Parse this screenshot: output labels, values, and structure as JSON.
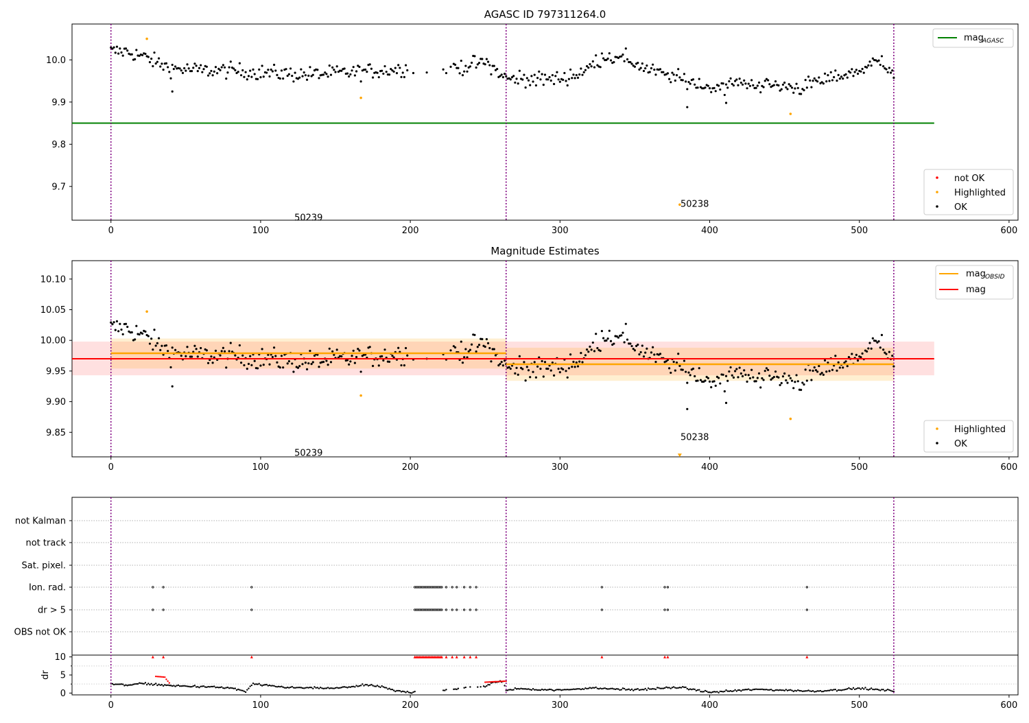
{
  "chart_data": [
    {
      "type": "scatter",
      "title": "AGASC ID 797311264.0",
      "xlabel": "",
      "ylabel": "",
      "xlim": [
        -26,
        606
      ],
      "ylim": [
        9.62,
        10.085
      ],
      "xticks": [
        0,
        100,
        200,
        300,
        400,
        500,
        600
      ],
      "yticks": [
        9.7,
        9.8,
        9.9,
        10.0
      ],
      "ytick_labels": [
        "9.7",
        "9.8",
        "9.9",
        "10.0"
      ],
      "obsid_boundaries": [
        0,
        264,
        523
      ],
      "annotations": [
        {
          "text": "50239",
          "x": 132,
          "y": 9.627
        },
        {
          "text": "50238",
          "x": 390,
          "y": 9.66
        }
      ],
      "lines": [
        {
          "name": "mag_AGASC",
          "label_main": "mag",
          "label_sub": "AGASC",
          "color": "#008000",
          "x": [
            -26,
            550
          ],
          "y": 9.85
        }
      ],
      "legend_lines_position": "top-right",
      "legend_points_position": "bottom-right",
      "legend_points": [
        {
          "name": "not OK",
          "color": "#ff0000"
        },
        {
          "name": "Highlighted",
          "color": "#ffa500"
        },
        {
          "name": "OK",
          "color": "#000000"
        }
      ],
      "highlighted": [
        {
          "x": 24,
          "y": 10.05
        },
        {
          "x": 167,
          "y": 9.91
        },
        {
          "x": 380,
          "y": 9.657
        },
        {
          "x": 454,
          "y": 9.872
        }
      ],
      "ok_trend": {
        "x": [
          0,
          10,
          20,
          40,
          60,
          80,
          100,
          130,
          160,
          180,
          200,
          230,
          250,
          264,
          300,
          315,
          330,
          345,
          360,
          380,
          400,
          420,
          440,
          460,
          480,
          500,
          515,
          523
        ],
        "y": [
          10.02,
          10.02,
          10.01,
          9.98,
          9.975,
          9.975,
          9.97,
          9.965,
          9.97,
          9.975,
          9.98,
          9.98,
          9.995,
          9.955,
          9.955,
          9.97,
          10.01,
          10.0,
          9.975,
          9.955,
          9.935,
          9.945,
          9.94,
          9.935,
          9.955,
          9.975,
          10.0,
          9.97
        ]
      },
      "ok_gaps": [
        [
          203,
          210
        ],
        [
          212,
          222
        ]
      ]
    },
    {
      "type": "scatter",
      "title": "Magnitude Estimates",
      "xlabel": "",
      "ylabel": "",
      "xlim": [
        -26,
        606
      ],
      "ylim": [
        9.81,
        10.13
      ],
      "xticks": [
        0,
        100,
        200,
        300,
        400,
        500,
        600
      ],
      "yticks": [
        9.85,
        9.9,
        9.95,
        10.0,
        10.05,
        10.1
      ],
      "ytick_labels": [
        "9.85",
        "9.90",
        "9.95",
        "10.00",
        "10.05",
        "10.10"
      ],
      "obsid_boundaries": [
        0,
        264,
        523
      ],
      "annotations": [
        {
          "text": "50239",
          "x": 132,
          "y": 9.817
        },
        {
          "text": "50238",
          "x": 390,
          "y": 9.843
        }
      ],
      "mag": {
        "value": 9.97,
        "band": [
          9.943,
          9.998
        ],
        "x": [
          -26,
          550
        ],
        "color": "#ff0000"
      },
      "mag_obsid": [
        {
          "x": [
            0,
            264
          ],
          "value": 9.979,
          "band": [
            9.954,
            10.003
          ]
        },
        {
          "x": [
            264,
            523
          ],
          "value": 9.961,
          "band": [
            9.934,
            9.988
          ]
        }
      ],
      "lines": [
        {
          "name": "mag_OBSID",
          "label_main": "mag",
          "label_sub": "OBSID",
          "color": "#ffa500"
        },
        {
          "name": "mag",
          "label_main": "mag",
          "label_sub": "",
          "color": "#ff0000"
        }
      ],
      "legend_lines_position": "top-right",
      "legend_points_position": "bottom-right",
      "legend_points": [
        {
          "name": "Highlighted",
          "color": "#ffa500"
        },
        {
          "name": "OK",
          "color": "#000000"
        }
      ],
      "highlighted": [
        {
          "x": 24,
          "y": 10.047
        },
        {
          "x": 167,
          "y": 9.91
        },
        {
          "x": 380,
          "y": 9.812
        },
        {
          "x": 454,
          "y": 9.872
        }
      ]
    },
    {
      "type": "scatter",
      "title": "",
      "xlabel": "",
      "ylabel": "dr",
      "xlim": [
        -26,
        606
      ],
      "xticks": [
        0,
        100,
        200,
        300,
        400,
        500,
        600
      ],
      "obsid_boundaries": [
        0,
        264,
        523
      ],
      "flag_rows": [
        "not Kalman",
        "not track",
        "Sat. pixel.",
        "Ion. rad.",
        "dr > 5",
        "OBS not OK"
      ],
      "flag_points": {
        "Ion. rad.": [
          28,
          35,
          94,
          203,
          204,
          205,
          206,
          207,
          208,
          209,
          210,
          211,
          212,
          213,
          214,
          215,
          216,
          217,
          218,
          219,
          220,
          221,
          224,
          228,
          231,
          236,
          240,
          244,
          328,
          370,
          372,
          465
        ],
        "dr > 5": [
          28,
          35,
          94,
          203,
          204,
          205,
          206,
          207,
          208,
          209,
          210,
          211,
          212,
          213,
          214,
          215,
          216,
          217,
          218,
          219,
          220,
          221,
          224,
          228,
          231,
          236,
          240,
          244,
          328,
          370,
          372,
          465
        ]
      },
      "dr_ylim": [
        -0.5,
        10.5
      ],
      "dr_yticks": [
        0,
        5,
        10
      ],
      "dr_trend": {
        "x": [
          0,
          10,
          20,
          30,
          40,
          60,
          80,
          90,
          95,
          100,
          120,
          150,
          170,
          180,
          190,
          200,
          230,
          250,
          255,
          262,
          264,
          270,
          300,
          320,
          350,
          380,
          400,
          430,
          450,
          470,
          500,
          523
        ],
        "y": [
          2.5,
          2.2,
          2.6,
          2.4,
          2.0,
          1.8,
          1.4,
          0.4,
          2.6,
          2.2,
          1.5,
          1.3,
          2.2,
          1.8,
          0.6,
          0.2,
          1.2,
          1.8,
          3.0,
          3.2,
          0.6,
          1.2,
          0.8,
          1.4,
          0.9,
          1.6,
          0.2,
          1.0,
          0.8,
          0.5,
          1.3,
          0.6
        ]
      },
      "dr_red_clusters": [
        {
          "x": [
            30,
            36
          ],
          "y": [
            4.6,
            4.4
          ]
        },
        {
          "x": [
            37,
            39
          ],
          "y": [
            3.8,
            2.8
          ]
        },
        {
          "x": [
            250,
            264
          ],
          "y": [
            3.0,
            3.3
          ]
        }
      ],
      "dr_red_caps": [
        28,
        35,
        94,
        203,
        204,
        205,
        206,
        207,
        208,
        209,
        210,
        211,
        212,
        213,
        214,
        215,
        216,
        217,
        218,
        219,
        220,
        221,
        224,
        228,
        231,
        236,
        240,
        244,
        328,
        370,
        372,
        465
      ]
    }
  ]
}
